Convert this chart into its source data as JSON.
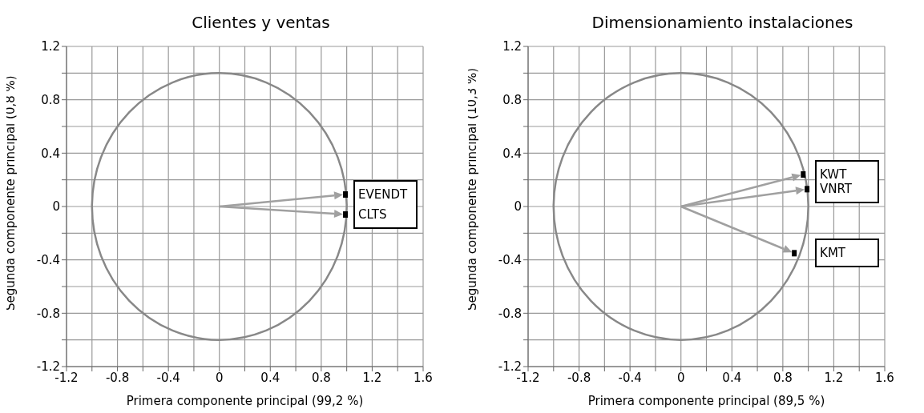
{
  "chart_data": [
    {
      "type": "scatter",
      "title": "Clientes y ventas",
      "xlabel": "Primera componente principal (99,2 %)",
      "ylabel": "Segunda componente principal (0,8 %)",
      "marker": "square",
      "grid": true,
      "legend": false,
      "xlim": [
        -1.2,
        1.6
      ],
      "xticks": [
        -1.2,
        {
          "value": -1,
          "label": null
        },
        -0.8,
        {
          "value": -0.6,
          "label": null
        },
        -0.4,
        {
          "value": -0.2,
          "label": null
        },
        0,
        {
          "value": 0.2,
          "label": null
        },
        0.4,
        {
          "value": 0.6,
          "label": null
        },
        0.8,
        {
          "value": 1,
          "label": null
        },
        1.2,
        {
          "value": 1.4,
          "label": null
        },
        1.6
      ],
      "ylim": [
        -1.2,
        1.2
      ],
      "yticks": [
        -1.2,
        {
          "value": -1,
          "label": null
        },
        -0.8,
        {
          "value": -0.6,
          "label": null
        },
        -0.4,
        {
          "value": -0.2,
          "label": null
        },
        0,
        {
          "value": 0.2,
          "label": null
        },
        0.4,
        {
          "value": 0.6,
          "label": null
        },
        0.8,
        {
          "value": 1,
          "label": null
        },
        1.2
      ],
      "series": [
        {
          "name": "EVENDT",
          "color": "#000000",
          "x": [
            0.99
          ],
          "values": [
            0.09
          ]
        },
        {
          "name": "CLTS",
          "color": "#000000",
          "x": [
            0.99
          ],
          "values": [
            -0.06
          ]
        }
      ]
    },
    {
      "type": "scatter",
      "title": "Dimensionamiento instalaciones",
      "xlabel": "Primera componente principal (89,5 %)",
      "ylabel": "Segunda componente principal (10,3 %)",
      "marker": "square",
      "grid": true,
      "legend": false,
      "xlim": [
        -1.2,
        1.6
      ],
      "xticks": [
        -1.2,
        {
          "value": -1,
          "label": null
        },
        -0.8,
        {
          "value": -0.6,
          "label": null
        },
        -0.4,
        {
          "value": -0.2,
          "label": null
        },
        0,
        {
          "value": 0.2,
          "label": null
        },
        0.4,
        {
          "value": 0.6,
          "label": null
        },
        0.8,
        {
          "value": 1,
          "label": null
        },
        1.2,
        {
          "value": 1.4,
          "label": null
        },
        1.6
      ],
      "ylim": [
        -1.2,
        1.2
      ],
      "yticks": [
        -1.2,
        {
          "value": -1,
          "label": null
        },
        -0.8,
        {
          "value": -0.6,
          "label": null
        },
        -0.4,
        {
          "value": -0.2,
          "label": null
        },
        0,
        {
          "value": 0.2,
          "label": null
        },
        0.4,
        {
          "value": 0.6,
          "label": null
        },
        0.8,
        {
          "value": 1,
          "label": null
        },
        1.2
      ],
      "series": [
        {
          "name": "KWT",
          "color": "#000000",
          "x": [
            0.96
          ],
          "values": [
            0.24
          ]
        },
        {
          "name": "VNRT",
          "color": "#000000",
          "x": [
            0.99
          ],
          "values": [
            0.13
          ]
        },
        {
          "name": "KMT",
          "color": "#000000",
          "x": [
            0.89
          ],
          "values": [
            -0.35
          ]
        }
      ]
    }
  ]
}
